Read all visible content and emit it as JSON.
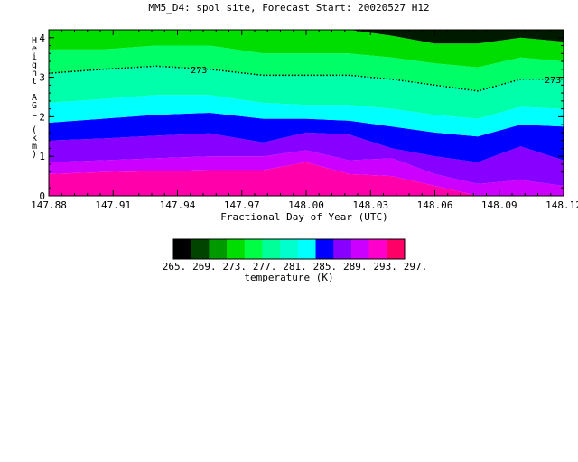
{
  "chart_data": {
    "type": "area",
    "title": "MM5_D4: spol site,  Forecast Start: 20020527 H12",
    "xlabel": "Fractional Day of Year (UTC)",
    "ylabel_chars": [
      "H",
      "e",
      "i",
      "g",
      "h",
      "t",
      "",
      "A",
      "G",
      "L",
      "",
      "(",
      "k",
      "m",
      ")"
    ],
    "xlim": [
      147.88,
      148.12
    ],
    "ylim": [
      0,
      4.2
    ],
    "x_ticks": [
      147.88,
      147.91,
      147.94,
      147.97,
      148.0,
      148.03,
      148.06,
      148.09,
      148.12
    ],
    "x_tick_labels": [
      "147.88",
      "147.91",
      "147.94",
      "147.97",
      "148.00",
      "148.03",
      "148.06",
      "148.09",
      "148.12"
    ],
    "y_ticks": [
      0,
      1,
      2,
      3,
      4
    ],
    "y_tick_labels": [
      "0",
      "1",
      "2",
      "3",
      "4"
    ],
    "x": [
      147.88,
      147.905,
      147.93,
      147.955,
      147.98,
      148.0,
      148.02,
      148.04,
      148.06,
      148.08,
      148.1,
      148.12
    ],
    "boundaries": [
      {
        "level": 293,
        "heights": [
          0.55,
          0.6,
          0.62,
          0.65,
          0.65,
          0.85,
          0.55,
          0.5,
          0.25,
          0.0,
          0.0,
          0.0
        ]
      },
      {
        "level": 289,
        "heights": [
          0.85,
          0.9,
          0.95,
          1.0,
          1.0,
          1.15,
          0.9,
          0.95,
          0.55,
          0.3,
          0.4,
          0.25
        ]
      },
      {
        "level": 285,
        "heights": [
          1.4,
          1.45,
          1.52,
          1.58,
          1.35,
          1.6,
          1.55,
          1.2,
          1.0,
          0.85,
          1.25,
          0.9
        ]
      },
      {
        "level": 281,
        "heights": [
          1.85,
          1.95,
          2.05,
          2.1,
          1.95,
          1.95,
          1.9,
          1.75,
          1.6,
          1.5,
          1.8,
          1.75
        ]
      },
      {
        "level": 277,
        "heights": [
          2.35,
          2.45,
          2.55,
          2.55,
          2.35,
          2.3,
          2.3,
          2.2,
          2.05,
          1.95,
          2.25,
          2.2
        ]
      },
      {
        "level": 273,
        "heights": [
          3.1,
          3.2,
          3.28,
          3.2,
          3.05,
          3.05,
          3.05,
          2.95,
          2.8,
          2.65,
          2.95,
          2.95
        ]
      },
      {
        "level": 269,
        "heights": [
          3.7,
          3.7,
          3.8,
          3.8,
          3.6,
          3.6,
          3.6,
          3.5,
          3.35,
          3.25,
          3.5,
          3.4
        ]
      },
      {
        "level": 265,
        "heights": [
          4.2,
          4.2,
          4.2,
          4.2,
          4.2,
          4.2,
          4.2,
          4.05,
          3.85,
          3.85,
          4.0,
          3.9
        ]
      }
    ],
    "band_colors": [
      "#ff00aa",
      "#dd00ff",
      "#8800ff",
      "#0000ff",
      "#00ffff",
      "#00ffcc",
      "#00ff88",
      "#00e600",
      "#009900",
      "#005500",
      "#002200"
    ],
    "band_order": [
      "293-297",
      "289-293",
      "285-289",
      "281-285",
      "277-281",
      "273-277",
      "269-273",
      "265-269",
      "top"
    ],
    "contour_label": {
      "text": "273",
      "positions": [
        {
          "x": 147.95,
          "y": 3.2
        },
        {
          "x": 148.115,
          "y": 2.95
        }
      ]
    },
    "colorbar": {
      "colors": [
        "#000000",
        "#004400",
        "#009900",
        "#00dd00",
        "#00ff44",
        "#00ff99",
        "#00ffcc",
        "#00ffff",
        "#0000ff",
        "#8800ff",
        "#cc00ff",
        "#ff00cc",
        "#ff0066"
      ],
      "tick_labels": [
        "265.",
        "269.",
        "273.",
        "277.",
        "281.",
        "285.",
        "289.",
        "293.",
        "297."
      ],
      "label": "temperature (K)"
    }
  }
}
